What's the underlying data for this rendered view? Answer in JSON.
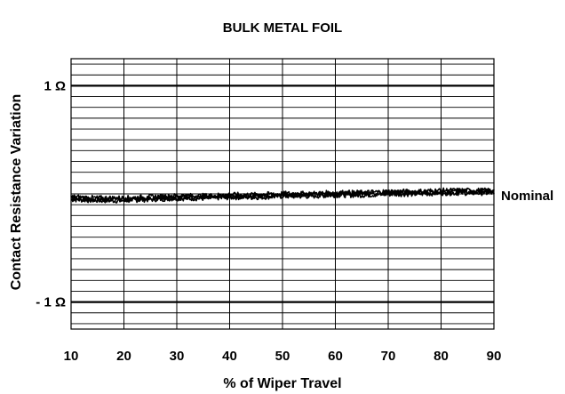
{
  "chart_data": {
    "type": "line",
    "title": "BULK METAL FOIL",
    "xlabel": "% of Wiper Travel",
    "ylabel": "Contact Resistance Variation",
    "xlim": [
      10,
      90
    ],
    "ylim": [
      -1.25,
      1.25
    ],
    "x_ticks": [
      "10",
      "20",
      "30",
      "40",
      "50",
      "60",
      "70",
      "80",
      "90"
    ],
    "y_tick_labels": [
      {
        "value": 1,
        "label": "1 Ω"
      },
      {
        "value": -1,
        "label": "- 1 Ω"
      }
    ],
    "annotation": {
      "text": "Nominal",
      "y": 0
    },
    "grid": true,
    "series": [
      {
        "x": [
          10,
          15,
          20,
          25,
          30,
          35,
          40,
          45,
          50,
          55,
          60,
          65,
          70,
          75,
          80,
          85,
          90
        ],
        "y": [
          -0.04,
          -0.05,
          -0.05,
          -0.04,
          -0.03,
          -0.03,
          -0.02,
          -0.02,
          -0.01,
          -0.01,
          0.0,
          0.0,
          0.01,
          0.01,
          0.02,
          0.02,
          0.02
        ]
      }
    ]
  }
}
